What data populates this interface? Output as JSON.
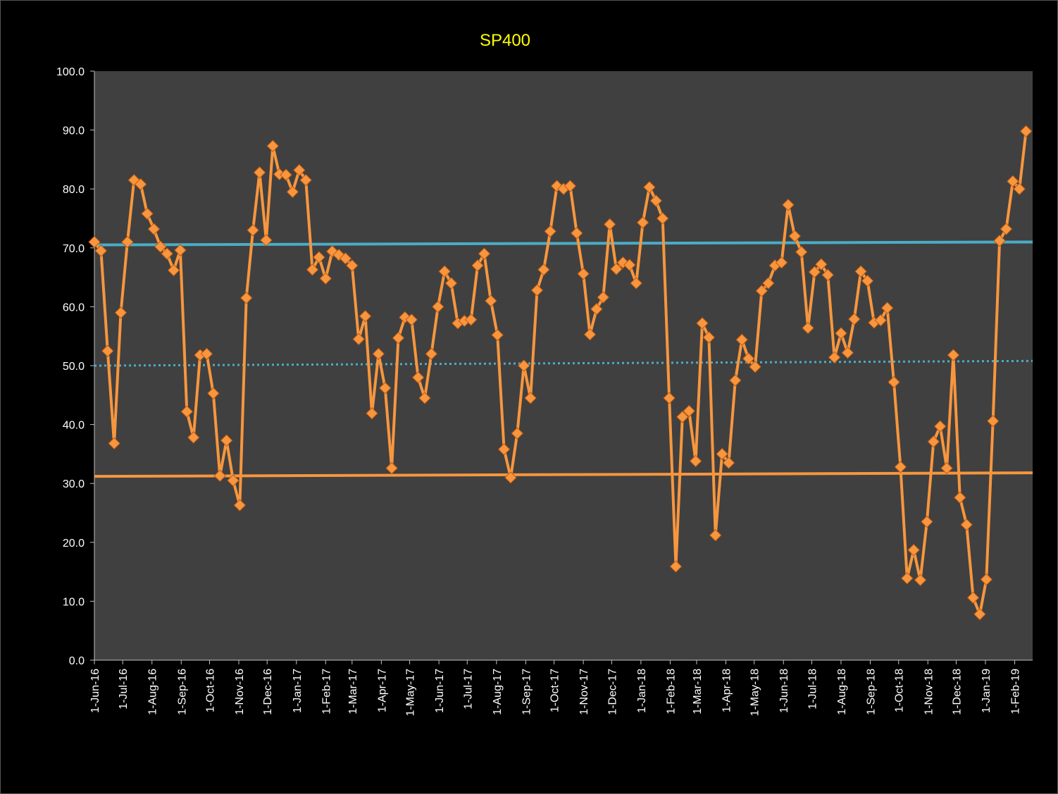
{
  "chart_data": {
    "type": "line",
    "title": "SP400",
    "xlabel": "",
    "ylabel": "",
    "ylim": [
      0,
      100
    ],
    "xlim": [
      "2016-06-01",
      "2019-02-20"
    ],
    "yticks": [
      "0.0",
      "10.0",
      "20.0",
      "30.0",
      "40.0",
      "50.0",
      "60.0",
      "70.0",
      "80.0",
      "90.0",
      "100.0"
    ],
    "xticks": [
      {
        "date": "2016-06-01",
        "label": "1-Jun-16"
      },
      {
        "date": "2016-07-01",
        "label": "1-Jul-16"
      },
      {
        "date": "2016-08-01",
        "label": "1-Aug-16"
      },
      {
        "date": "2016-09-01",
        "label": "1-Sep-16"
      },
      {
        "date": "2016-10-01",
        "label": "1-Oct-16"
      },
      {
        "date": "2016-11-01",
        "label": "1-Nov-16"
      },
      {
        "date": "2016-12-01",
        "label": "1-Dec-16"
      },
      {
        "date": "2017-01-01",
        "label": "1-Jan-17"
      },
      {
        "date": "2017-02-01",
        "label": "1-Feb-17"
      },
      {
        "date": "2017-03-01",
        "label": "1-Mar-17"
      },
      {
        "date": "2017-04-01",
        "label": "1-Apr-17"
      },
      {
        "date": "2017-05-01",
        "label": "1-May-17"
      },
      {
        "date": "2017-06-01",
        "label": "1-Jun-17"
      },
      {
        "date": "2017-07-01",
        "label": "1-Jul-17"
      },
      {
        "date": "2017-08-01",
        "label": "1-Aug-17"
      },
      {
        "date": "2017-09-01",
        "label": "1-Sep-17"
      },
      {
        "date": "2017-10-01",
        "label": "1-Oct-17"
      },
      {
        "date": "2017-11-01",
        "label": "1-Nov-17"
      },
      {
        "date": "2017-12-01",
        "label": "1-Dec-17"
      },
      {
        "date": "2018-01-01",
        "label": "1-Jan-18"
      },
      {
        "date": "2018-02-01",
        "label": "1-Feb-18"
      },
      {
        "date": "2018-03-01",
        "label": "1-Mar-18"
      },
      {
        "date": "2018-04-01",
        "label": "1-Apr-18"
      },
      {
        "date": "2018-05-01",
        "label": "1-May-18"
      },
      {
        "date": "2018-06-01",
        "label": "1-Jun-18"
      },
      {
        "date": "2018-07-01",
        "label": "1-Jul-18"
      },
      {
        "date": "2018-08-01",
        "label": "1-Aug-18"
      },
      {
        "date": "2018-09-01",
        "label": "1-Sep-18"
      },
      {
        "date": "2018-10-01",
        "label": "1-Oct-18"
      },
      {
        "date": "2018-11-01",
        "label": "1-Nov-18"
      },
      {
        "date": "2018-12-01",
        "label": "1-Dec-18"
      },
      {
        "date": "2019-01-01",
        "label": "1-Jan-19"
      },
      {
        "date": "2019-02-01",
        "label": "1-Feb-19"
      }
    ],
    "grid": false,
    "legend": "none",
    "colors": {
      "background": "#000000",
      "plot_area": "#404040",
      "series": "#f7963e",
      "marker": "#f7963e",
      "upper_line": "#4bacc6",
      "middle_line": "#4bacc6",
      "lower_line": "#f7963e",
      "title": "#ffff00",
      "text": "#ffffff"
    },
    "series": [
      {
        "marker": "diamond",
        "x": [
          "2016-06-01",
          "2016-06-08",
          "2016-06-15",
          "2016-06-22",
          "2016-06-29",
          "2016-07-06",
          "2016-07-13",
          "2016-07-20",
          "2016-07-27",
          "2016-08-03",
          "2016-08-10",
          "2016-08-17",
          "2016-08-24",
          "2016-08-31",
          "2016-09-07",
          "2016-09-14",
          "2016-09-21",
          "2016-09-28",
          "2016-10-05",
          "2016-10-12",
          "2016-10-19",
          "2016-10-26",
          "2016-11-02",
          "2016-11-09",
          "2016-11-16",
          "2016-11-23",
          "2016-11-30",
          "2016-12-07",
          "2016-12-14",
          "2016-12-21",
          "2016-12-28",
          "2017-01-04",
          "2017-01-11",
          "2017-01-18",
          "2017-01-25",
          "2017-02-01",
          "2017-02-08",
          "2017-02-15",
          "2017-02-22",
          "2017-03-01",
          "2017-03-08",
          "2017-03-15",
          "2017-03-22",
          "2017-03-29",
          "2017-04-05",
          "2017-04-12",
          "2017-04-19",
          "2017-04-26",
          "2017-05-03",
          "2017-05-10",
          "2017-05-17",
          "2017-05-24",
          "2017-05-31",
          "2017-06-07",
          "2017-06-14",
          "2017-06-21",
          "2017-06-28",
          "2017-07-05",
          "2017-07-12",
          "2017-07-19",
          "2017-07-26",
          "2017-08-02",
          "2017-08-09",
          "2017-08-16",
          "2017-08-23",
          "2017-08-30",
          "2017-09-06",
          "2017-09-13",
          "2017-09-20",
          "2017-09-27",
          "2017-10-04",
          "2017-10-11",
          "2017-10-18",
          "2017-10-25",
          "2017-11-01",
          "2017-11-08",
          "2017-11-15",
          "2017-11-22",
          "2017-11-29",
          "2017-12-06",
          "2017-12-13",
          "2017-12-20",
          "2017-12-27",
          "2018-01-03",
          "2018-01-10",
          "2018-01-17",
          "2018-01-24",
          "2018-01-31",
          "2018-02-07",
          "2018-02-14",
          "2018-02-21",
          "2018-02-28",
          "2018-03-07",
          "2018-03-14",
          "2018-03-21",
          "2018-03-28",
          "2018-04-04",
          "2018-04-11",
          "2018-04-18",
          "2018-04-25",
          "2018-05-02",
          "2018-05-09",
          "2018-05-16",
          "2018-05-23",
          "2018-05-30",
          "2018-06-06",
          "2018-06-13",
          "2018-06-20",
          "2018-06-27",
          "2018-07-04",
          "2018-07-11",
          "2018-07-18",
          "2018-07-25",
          "2018-08-01",
          "2018-08-08",
          "2018-08-15",
          "2018-08-22",
          "2018-08-29",
          "2018-09-05",
          "2018-09-12",
          "2018-09-19",
          "2018-09-26",
          "2018-10-03",
          "2018-10-10",
          "2018-10-17",
          "2018-10-24",
          "2018-10-31",
          "2018-11-07",
          "2018-11-14",
          "2018-11-21",
          "2018-11-28",
          "2018-12-05",
          "2018-12-12",
          "2018-12-19",
          "2018-12-26",
          "2019-01-02",
          "2019-01-09",
          "2019-01-16",
          "2019-01-23",
          "2019-01-30",
          "2019-02-06",
          "2019-02-13"
        ],
        "values": [
          71.0,
          69.5,
          52.5,
          36.8,
          59.0,
          71.0,
          81.5,
          80.8,
          75.8,
          73.2,
          70.2,
          69.0,
          66.2,
          69.6,
          42.2,
          37.8,
          51.8,
          52.0,
          45.3,
          31.3,
          37.3,
          30.5,
          26.3,
          61.5,
          73.0,
          82.8,
          71.3,
          87.3,
          82.5,
          82.4,
          79.5,
          83.2,
          81.5,
          66.3,
          68.4,
          64.8,
          69.4,
          68.8,
          68.2,
          67.0,
          54.5,
          58.4,
          41.9,
          52.0,
          46.2,
          32.6,
          54.7,
          58.2,
          57.8,
          48.0,
          44.5,
          52.0,
          60.0,
          66.0,
          64.0,
          57.2,
          57.6,
          57.8,
          67.0,
          69.0,
          61.0,
          55.2,
          35.8,
          31.0,
          38.5,
          50.0,
          44.5,
          62.8,
          66.3,
          72.8,
          80.5,
          80.0,
          80.5,
          72.5,
          65.6,
          55.3,
          59.6,
          61.6,
          74.0,
          66.4,
          67.5,
          67.1,
          64.0,
          74.3,
          80.3,
          78.0,
          75.0,
          44.5,
          15.9,
          41.3,
          42.3,
          33.8,
          57.2,
          54.8,
          21.2,
          35.0,
          33.5,
          47.5,
          54.4,
          51.2,
          49.8,
          62.7,
          64.0,
          67.0,
          67.5,
          77.3,
          72.0,
          69.3,
          56.4,
          65.9,
          67.2,
          65.4,
          51.4,
          55.5,
          52.2,
          57.9,
          66.0,
          64.4,
          57.3,
          57.7,
          59.8,
          47.2,
          32.8,
          13.9,
          18.7,
          13.6,
          23.5,
          37.1,
          39.7,
          32.6,
          51.8,
          27.6,
          23.0,
          10.6,
          7.8,
          13.7,
          40.6,
          71.2,
          73.2,
          81.3,
          80.0,
          89.8
        ]
      },
      {
        "style": "solid",
        "x": [
          "2016-06-01",
          "2019-02-20"
        ],
        "values": [
          70.5,
          71.0
        ]
      },
      {
        "style": "dotted",
        "x": [
          "2016-06-01",
          "2019-02-20"
        ],
        "values": [
          50.0,
          50.8
        ]
      },
      {
        "style": "solid",
        "x": [
          "2016-06-01",
          "2019-02-20"
        ],
        "values": [
          31.2,
          31.8
        ]
      }
    ]
  }
}
